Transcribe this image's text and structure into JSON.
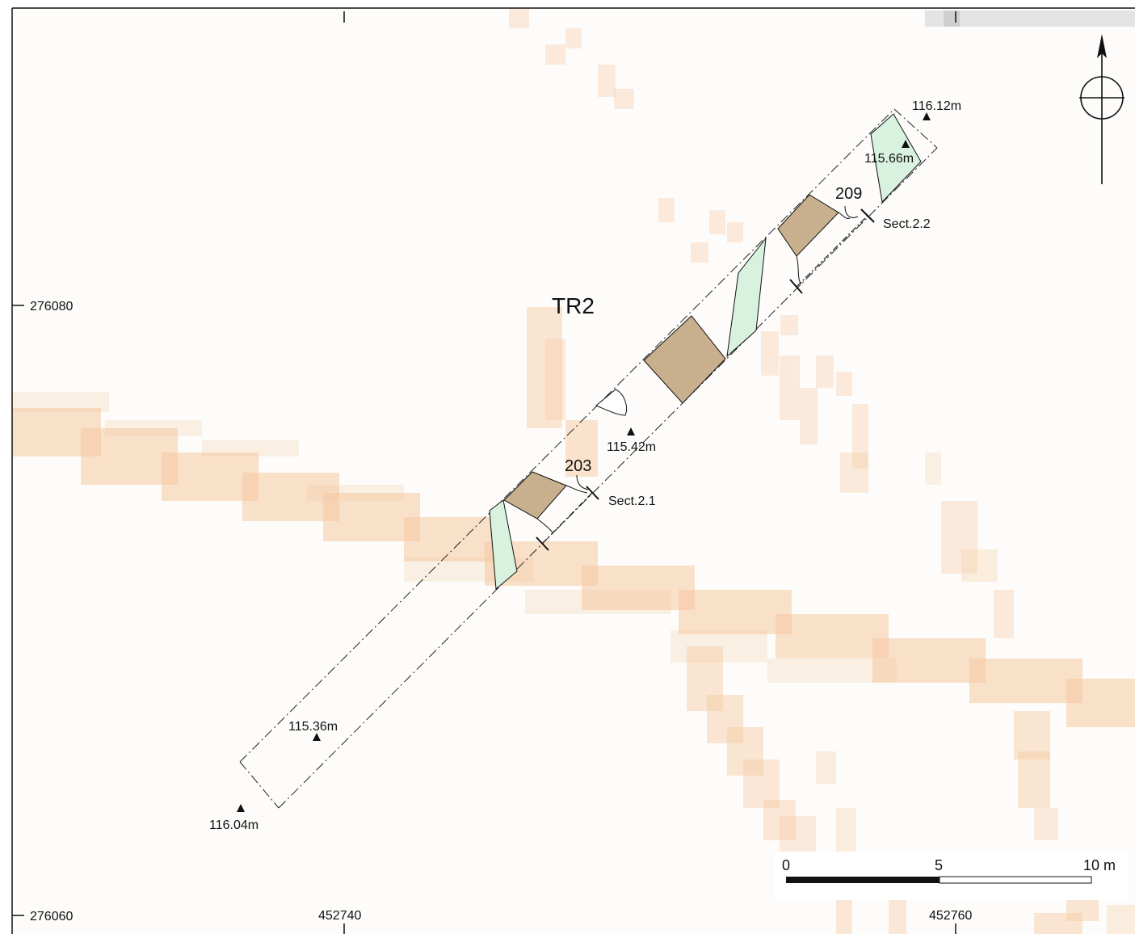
{
  "trench": {
    "label": "TR2"
  },
  "levels": [
    {
      "id": "lvl-a",
      "text": "116.12m"
    },
    {
      "id": "lvl-b",
      "text": "115.66m"
    },
    {
      "id": "lvl-c",
      "text": "115.42m"
    },
    {
      "id": "lvl-d",
      "text": "115.36m"
    },
    {
      "id": "lvl-e",
      "text": "116.04m"
    }
  ],
  "contexts": [
    {
      "id": "ctx-209",
      "text": "209"
    },
    {
      "id": "ctx-203",
      "text": "203"
    }
  ],
  "sections": [
    {
      "id": "sect-2-2",
      "text": "Sect.2.2"
    },
    {
      "id": "sect-2-1",
      "text": "Sect.2.1"
    }
  ],
  "grid": {
    "northings": [
      "276080",
      "276060"
    ],
    "eastings": [
      "452740",
      "452760"
    ]
  },
  "scale_bar": {
    "labels": [
      "0",
      "5",
      "10 m"
    ]
  },
  "colors": {
    "background": "#fdfcfa",
    "raster": "#f5c9a0",
    "feature_brown": "#c8b08e",
    "feature_green": "#d9f2df",
    "frame": "#111111"
  },
  "icons": {
    "north_arrow": "north-arrow-icon",
    "level_marker": "triangle-icon"
  }
}
